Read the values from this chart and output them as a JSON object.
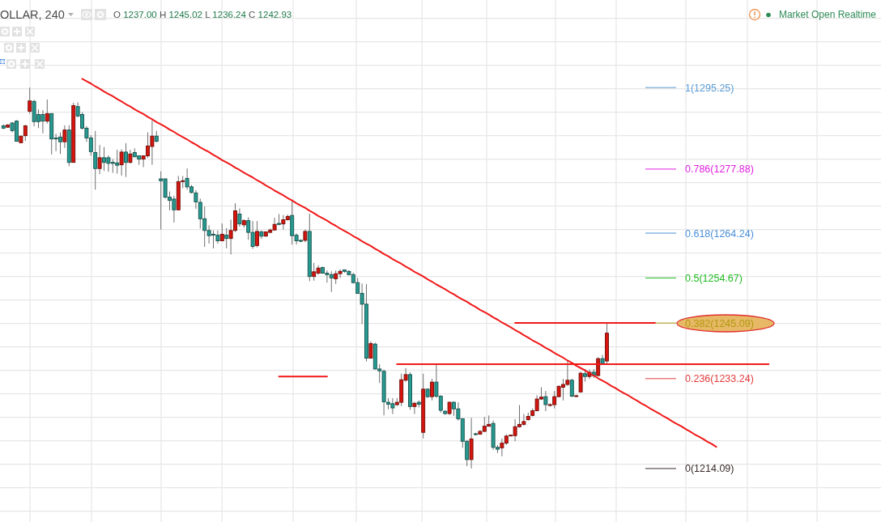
{
  "chart_data": {
    "type": "candlestick",
    "title": "OLLAR, 240",
    "subtitle": "O 1237.00 H 1245.02 L 1236.24 C 1242.93",
    "annotations": [
      "Market Open Realtime"
    ],
    "categories": [
      null,
      null,
      null,
      null,
      null,
      null,
      null,
      null,
      null,
      null,
      null,
      null,
      null,
      null,
      null,
      null,
      null,
      null,
      null,
      null,
      null,
      null,
      null,
      null,
      null,
      null,
      null,
      null,
      null,
      null,
      null,
      null,
      null,
      null,
      null,
      null,
      null,
      null,
      null,
      null,
      null,
      null,
      null,
      null,
      null,
      null,
      null,
      null,
      null,
      null,
      null,
      null,
      null,
      null,
      null,
      null,
      null,
      null,
      null,
      null,
      null,
      null,
      null,
      null,
      null,
      null,
      null,
      null,
      null,
      null,
      null,
      null,
      null,
      null,
      null,
      null,
      null,
      null,
      null,
      null,
      null,
      null,
      null,
      null,
      null,
      null,
      null,
      null,
      null,
      null,
      null,
      null,
      null,
      null,
      null,
      null,
      null,
      null,
      null,
      null,
      null,
      null,
      null,
      null,
      null,
      null,
      null,
      null,
      null,
      null,
      null,
      null,
      null,
      null,
      null,
      null,
      null,
      null,
      null,
      null,
      null,
      null,
      null,
      null,
      null,
      null,
      null,
      null,
      null,
      null,
      null,
      null,
      null,
      null,
      null,
      null,
      null,
      null,
      null,
      null,
      null,
      null,
      null,
      null,
      null,
      null,
      null,
      null,
      null,
      null,
      null,
      null,
      null,
      null,
      null,
      null,
      null,
      null,
      null,
      null,
      null,
      null,
      null,
      null,
      null,
      null,
      null,
      null,
      null,
      null,
      null,
      null,
      null,
      null,
      null,
      null,
      null,
      null,
      null,
      null,
      null,
      null,
      null,
      null,
      null,
      null,
      null,
      null,
      null,
      null,
      null,
      null,
      null,
      null,
      null,
      null,
      null,
      null,
      null,
      null,
      null
    ],
    "ohlc": [
      [
        1287.1,
        1287.4,
        1286.4,
        1286.6
      ],
      [
        1286.8,
        1287.4,
        1286.7,
        1287.3
      ],
      [
        1287.7,
        1287.9,
        1285.7,
        1286.1
      ],
      [
        1288.1,
        1288.3,
        1283.7,
        1283.8
      ],
      [
        1283.5,
        1285.0,
        1283.4,
        1284.9
      ],
      [
        1285.0,
        1287.3,
        1283.9,
        1287.1
      ],
      [
        1290.2,
        1295.25,
        1289.7,
        1292.4
      ],
      [
        1292.3,
        1292.6,
        1287.0,
        1288.0
      ],
      [
        1289.5,
        1290.6,
        1286.6,
        1288.0
      ],
      [
        1289.5,
        1290.4,
        1285.5,
        1288.1
      ],
      [
        1288.1,
        1292.7,
        1287.6,
        1289.7
      ],
      [
        1289.7,
        1289.7,
        1281.0,
        1284.3
      ],
      [
        1284.5,
        1285.4,
        1281.7,
        1284.3
      ],
      [
        1284.7,
        1285.7,
        1281.1,
        1283.7
      ],
      [
        1283.7,
        1287.2,
        1282.4,
        1286.2
      ],
      [
        1286.2,
        1287.2,
        1278.5,
        1279.3
      ],
      [
        1279.3,
        1292.0,
        1279.3,
        1291.4
      ],
      [
        1291.2,
        1292.1,
        1288.9,
        1289.2
      ],
      [
        1289.5,
        1290.0,
        1286.3,
        1286.6
      ],
      [
        1286.6,
        1287.0,
        1283.7,
        1284.5
      ],
      [
        1284.5,
        1285.1,
        1280.7,
        1281.6
      ],
      [
        1281.4,
        1286.0,
        1273.5,
        1278.0
      ],
      [
        1278.0,
        1283.0,
        1276.8,
        1280.3
      ],
      [
        1280.3,
        1282.6,
        1277.5,
        1279.3
      ],
      [
        1280.3,
        1280.8,
        1277.3,
        1279.1
      ],
      [
        1279.3,
        1280.0,
        1277.1,
        1279.1
      ],
      [
        1279.2,
        1282.0,
        1276.9,
        1278.7
      ],
      [
        1278.8,
        1282.1,
        1276.5,
        1281.5
      ],
      [
        1281.5,
        1283.4,
        1276.2,
        1279.3
      ],
      [
        1279.3,
        1282.0,
        1279.1,
        1281.1
      ],
      [
        1281.4,
        1282.3,
        1280.4,
        1280.5
      ],
      [
        1280.7,
        1280.8,
        1278.8,
        1280.0
      ],
      [
        1280.0,
        1280.8,
        1278.3,
        1280.7
      ],
      [
        1280.7,
        1285.7,
        1280.3,
        1282.8
      ],
      [
        1282.7,
        1288.2,
        1278.8,
        1284.9
      ],
      [
        1284.9,
        1286.0,
        1283.6,
        1283.8
      ],
      [
        1275.8,
        1277.4,
        1265.0,
        1275.4
      ],
      [
        1275.8,
        1275.8,
        1271.6,
        1271.9
      ],
      [
        1271.9,
        1273.1,
        1269.1,
        1271.2
      ],
      [
        1271.5,
        1272.2,
        1266.5,
        1269.2
      ],
      [
        1269.2,
        1276.4,
        1269.1,
        1275.2
      ],
      [
        1275.3,
        1276.4,
        1273.8,
        1275.4
      ],
      [
        1275.9,
        1278.0,
        1273.5,
        1274.1
      ],
      [
        1274.1,
        1274.5,
        1272.7,
        1272.9
      ],
      [
        1272.8,
        1273.4,
        1269.4,
        1270.9
      ],
      [
        1270.8,
        1271.6,
        1265.2,
        1267.3
      ],
      [
        1267.3,
        1269.9,
        1261.3,
        1264.8
      ],
      [
        1264.8,
        1265.9,
        1262.0,
        1263.7
      ],
      [
        1264.0,
        1264.8,
        1261.0,
        1263.8
      ],
      [
        1263.8,
        1264.8,
        1262.0,
        1262.6
      ],
      [
        1262.6,
        1266.3,
        1262.5,
        1264.0
      ],
      [
        1263.8,
        1265.3,
        1261.0,
        1263.1
      ],
      [
        1263.1,
        1267.1,
        1259.7,
        1264.8
      ],
      [
        1264.8,
        1270.6,
        1264.5,
        1269.0
      ],
      [
        1268.3,
        1269.5,
        1265.6,
        1266.2
      ],
      [
        1266.0,
        1267.2,
        1265.4,
        1266.9
      ],
      [
        1266.9,
        1267.6,
        1262.8,
        1264.4
      ],
      [
        1264.4,
        1266.8,
        1260.9,
        1261.4
      ],
      [
        1261.6,
        1266.8,
        1261.2,
        1264.6
      ],
      [
        1264.5,
        1264.8,
        1263.0,
        1263.6
      ],
      [
        1263.6,
        1264.6,
        1263.5,
        1264.5
      ],
      [
        1264.4,
        1265.2,
        1264.2,
        1264.9
      ],
      [
        1264.9,
        1267.5,
        1264.8,
        1266.1
      ],
      [
        1266.3,
        1268.3,
        1265.9,
        1266.1
      ],
      [
        1266.2,
        1268.1,
        1265.0,
        1267.1
      ],
      [
        1267.1,
        1268.2,
        1266.9,
        1267.8
      ],
      [
        1268.0,
        1271.1,
        1261.8,
        1263.7
      ],
      [
        1263.8,
        1264.2,
        1261.8,
        1262.6
      ],
      [
        1262.7,
        1262.9,
        1262.3,
        1262.5
      ],
      [
        1262.7,
        1265.0,
        1262.3,
        1264.6
      ],
      [
        1264.6,
        1268.4,
        1254.0,
        1255.0
      ],
      [
        1255.0,
        1257.9,
        1254.1,
        1256.0
      ],
      [
        1255.7,
        1257.4,
        1255.4,
        1256.8
      ],
      [
        1256.9,
        1257.1,
        1255.6,
        1255.7
      ],
      [
        1255.7,
        1256.3,
        1253.7,
        1255.4
      ],
      [
        1255.4,
        1256.1,
        1251.7,
        1254.7
      ],
      [
        1254.5,
        1256.3,
        1253.4,
        1255.6
      ],
      [
        1255.6,
        1256.5,
        1254.7,
        1256.1
      ],
      [
        1256.4,
        1256.5,
        1255.8,
        1256.1
      ],
      [
        1256.1,
        1256.3,
        1255.2,
        1255.4
      ],
      [
        1255.4,
        1255.8,
        1253.5,
        1253.7
      ],
      [
        1253.7,
        1254.7,
        1251.3,
        1251.4
      ],
      [
        1251.4,
        1253.5,
        1244.9,
        1249.1
      ],
      [
        1249.1,
        1253.4,
        1236.9,
        1237.6
      ],
      [
        1237.6,
        1241.2,
        1237.5,
        1240.7
      ],
      [
        1240.6,
        1240.9,
        1235.2,
        1235.3
      ],
      [
        1235.3,
        1236.3,
        1232.3,
        1234.9
      ],
      [
        1234.8,
        1235.2,
        1225.4,
        1228.3
      ],
      [
        1228.2,
        1229.1,
        1226.7,
        1227.8
      ],
      [
        1227.9,
        1229.1,
        1225.7,
        1227.0
      ],
      [
        1227.7,
        1229.1,
        1227.4,
        1228.2
      ],
      [
        1228.2,
        1234.3,
        1227.4,
        1233.0
      ],
      [
        1232.9,
        1235.5,
        1232.6,
        1234.1
      ],
      [
        1234.1,
        1234.6,
        1226.6,
        1227.3
      ],
      [
        1227.3,
        1228.3,
        1225.7,
        1228.0
      ],
      [
        1228.2,
        1228.6,
        1227.1,
        1227.8
      ],
      [
        1221.8,
        1234.3,
        1220.5,
        1231.0
      ],
      [
        1231.0,
        1231.2,
        1229.1,
        1229.4
      ],
      [
        1229.4,
        1233.2,
        1228.6,
        1232.5
      ],
      [
        1232.5,
        1236.3,
        1229.1,
        1229.5
      ],
      [
        1229.5,
        1229.7,
        1226.0,
        1226.5
      ],
      [
        1226.3,
        1226.5,
        1225.5,
        1225.8
      ],
      [
        1225.8,
        1228.4,
        1225.5,
        1228.2
      ],
      [
        1228.2,
        1228.4,
        1225.3,
        1226.8
      ],
      [
        1226.8,
        1228.2,
        1224.3,
        1224.7
      ],
      [
        1224.7,
        1224.8,
        1218.5,
        1219.9
      ],
      [
        1219.9,
        1220.2,
        1214.6,
        1216.0
      ],
      [
        1216.0,
        1224.9,
        1214.09,
        1220.4
      ],
      [
        1221.5,
        1221.7,
        1221.1,
        1221.4
      ],
      [
        1221.4,
        1222.3,
        1221.3,
        1222.0
      ],
      [
        1222.0,
        1225.1,
        1221.9,
        1223.1
      ],
      [
        1223.1,
        1225.4,
        1223.0,
        1223.5
      ],
      [
        1223.7,
        1224.3,
        1218.1,
        1218.6
      ],
      [
        1218.6,
        1219.1,
        1217.4,
        1218.2
      ],
      [
        1218.5,
        1220.5,
        1216.7,
        1219.5
      ],
      [
        1219.5,
        1221.4,
        1219.1,
        1221.0
      ],
      [
        1221.1,
        1221.3,
        1221.0,
        1221.2
      ],
      [
        1221.1,
        1224.6,
        1219.9,
        1223.0
      ],
      [
        1223.0,
        1227.6,
        1222.8,
        1223.5
      ],
      [
        1223.5,
        1225.7,
        1223.2,
        1224.1
      ],
      [
        1224.5,
        1226.0,
        1224.3,
        1225.2
      ],
      [
        1225.4,
        1226.9,
        1225.2,
        1226.4
      ],
      [
        1226.4,
        1229.7,
        1226.3,
        1228.9
      ],
      [
        1228.9,
        1231.4,
        1228.7,
        1229.3
      ],
      [
        1229.4,
        1230.6,
        1226.3,
        1227.7
      ],
      [
        1227.6,
        1228.0,
        1227.3,
        1227.7
      ],
      [
        1227.7,
        1230.6,
        1226.9,
        1229.4
      ],
      [
        1229.4,
        1231.8,
        1229.3,
        1231.6
      ],
      [
        1231.4,
        1233.2,
        1228.6,
        1232.0
      ],
      [
        1232.0,
        1237.2,
        1231.7,
        1232.9
      ],
      [
        1232.9,
        1233.2,
        1229.3,
        1229.5
      ],
      [
        1229.5,
        1229.8,
        1229.3,
        1229.6
      ],
      [
        1230.4,
        1234.7,
        1230.3,
        1234.4
      ],
      [
        1234.3,
        1235.3,
        1232.6,
        1233.7
      ],
      [
        1233.7,
        1235.2,
        1233.2,
        1234.6
      ],
      [
        1234.6,
        1235.3,
        1233.4,
        1233.9
      ],
      [
        1233.9,
        1237.8,
        1233.7,
        1237.5
      ],
      [
        1237.5,
        1238.3,
        1236.3,
        1236.4
      ],
      [
        1237.0,
        1245.02,
        1236.24,
        1242.93
      ],
      null,
      null,
      null,
      null,
      null,
      null,
      null,
      null,
      null,
      null,
      null,
      null,
      null,
      null,
      null,
      null,
      null,
      null,
      null,
      null,
      null,
      null,
      null,
      null,
      null,
      null,
      null,
      null,
      null,
      null,
      null,
      null,
      null,
      null,
      null,
      null,
      null,
      null,
      null,
      null,
      null,
      null,
      null,
      null,
      null,
      null,
      null,
      null,
      null,
      null,
      null,
      null,
      null,
      null,
      null,
      null,
      null,
      null,
      null,
      null,
      null,
      null
    ],
    "colors": [
      "#279a91",
      "#d5150e",
      "#279a91",
      "#279a91",
      "#d5150e",
      "#d5150e",
      "#d5150e",
      "#279a91",
      "#279a91",
      "#279a91",
      "#d5150e",
      "#279a91",
      "#279a91",
      "#279a91",
      "#d5150e",
      "#279a91",
      "#d5150e",
      "#279a91",
      "#279a91",
      "#279a91",
      "#279a91",
      "#279a91",
      "#d5150e",
      "#279a91",
      "#279a91",
      "#279a91",
      "#279a91",
      "#d5150e",
      "#279a91",
      "#d5150e",
      "#279a91",
      "#279a91",
      "#d5150e",
      "#d5150e",
      "#d5150e",
      "#279a91",
      "#279a91",
      "#279a91",
      "#279a91",
      "#279a91",
      "#d5150e",
      "#d5150e",
      "#279a91",
      "#279a91",
      "#279a91",
      "#279a91",
      "#279a91",
      "#279a91",
      "#279a91",
      "#279a91",
      "#d5150e",
      "#279a91",
      "#d5150e",
      "#d5150e",
      "#279a91",
      "#d5150e",
      "#279a91",
      "#279a91",
      "#d5150e",
      "#279a91",
      "#d5150e",
      "#d5150e",
      "#d5150e",
      "#279a91",
      "#d5150e",
      "#d5150e",
      "#279a91",
      "#279a91",
      "#279a91",
      "#d5150e",
      "#279a91",
      "#d5150e",
      "#d5150e",
      "#279a91",
      "#279a91",
      "#279a91",
      "#d5150e",
      "#d5150e",
      "#279a91",
      "#279a91",
      "#279a91",
      "#279a91",
      "#279a91",
      "#279a91",
      "#d5150e",
      "#279a91",
      "#279a91",
      "#279a91",
      "#279a91",
      "#279a91",
      "#d5150e",
      "#d5150e",
      "#d5150e",
      "#279a91",
      "#d5150e",
      "#279a91",
      "#d5150e",
      "#279a91",
      "#d5150e",
      "#279a91",
      "#279a91",
      "#279a91",
      "#d5150e",
      "#279a91",
      "#279a91",
      "#279a91",
      "#279a91",
      "#d5150e",
      "#279a91",
      "#d5150e",
      "#d5150e",
      "#d5150e",
      "#279a91",
      "#279a91",
      "#d5150e",
      "#d5150e",
      "#d5150e",
      "#d5150e",
      "#d5150e",
      "#d5150e",
      "#d5150e",
      "#d5150e",
      "#d5150e",
      "#d5150e",
      "#279a91",
      "#d5150e",
      "#d5150e",
      "#d5150e",
      "#d5150e",
      "#d5150e",
      "#279a91",
      "#d5150e",
      "#d5150e",
      "#279a91",
      "#d5150e",
      "#279a91",
      "#d5150e",
      "#279a91",
      "#d5150e",
      null,
      null,
      null,
      null,
      null,
      null,
      null,
      null,
      null,
      null,
      null,
      null,
      null,
      null,
      null,
      null,
      null,
      null,
      null,
      null,
      null,
      null,
      null,
      null,
      null,
      null,
      null,
      null,
      null,
      null,
      null,
      null,
      null,
      null,
      null,
      null,
      null,
      null,
      null,
      null,
      null,
      null,
      null,
      null,
      null,
      null,
      null,
      null,
      null,
      null,
      null,
      null,
      null,
      null,
      null,
      null,
      null,
      null,
      null,
      null,
      null,
      null
    ],
    "series": [
      {
        "type": "line",
        "color": "#f01818",
        "values": [
          null,
          null,
          null,
          null,
          null,
          null,
          null,
          null,
          null,
          null,
          null,
          null,
          null,
          null,
          null,
          null,
          null,
          null,
          1297.1,
          1296.6,
          1296.1,
          1295.5,
          1295.0,
          1294.4,
          1293.9,
          1293.4,
          1292.8,
          1292.3,
          1291.7,
          1291.2,
          1290.6,
          1290.1,
          1289.6,
          1289.0,
          1288.5,
          1287.9,
          1287.4,
          1286.9,
          1286.3,
          1285.8,
          1285.2,
          1284.7,
          1284.2,
          1283.6,
          1283.1,
          1282.5,
          1282.0,
          1281.5,
          1280.9,
          1280.4,
          1279.8,
          1279.3,
          1278.8,
          1278.2,
          1277.7,
          1277.1,
          1276.6,
          1276.1,
          1275.5,
          1275.0,
          1274.4,
          1273.9,
          1273.3,
          1272.8,
          1272.3,
          1271.7,
          1271.2,
          1270.6,
          1270.1,
          1269.6,
          1269.0,
          1268.5,
          1267.9,
          1267.4,
          1266.9,
          1266.3,
          1265.8,
          1265.2,
          1264.7,
          1264.2,
          1263.6,
          1263.1,
          1262.5,
          1262.0,
          1261.5,
          1260.9,
          1260.4,
          1259.8,
          1259.3,
          1258.7,
          1258.2,
          1257.7,
          1257.1,
          1256.6,
          1256.0,
          1255.5,
          1255.0,
          1254.4,
          1253.9,
          1253.3,
          1252.8,
          1252.3,
          1251.7,
          1251.2,
          1250.6,
          1250.1,
          1249.6,
          1249.0,
          1248.5,
          1247.9,
          1247.4,
          1246.9,
          1246.3,
          1245.8,
          1245.2,
          1244.7,
          1244.2,
          1243.6,
          1243.1,
          1242.5,
          1242.0,
          1241.4,
          1240.9,
          1240.4,
          1239.8,
          1239.3,
          1238.7,
          1238.2,
          1237.7,
          1237.1,
          1236.6,
          1236.0,
          1235.5,
          1235.0,
          1234.4,
          1233.9,
          1233.3,
          1232.8,
          1232.3,
          1231.7,
          1231.2,
          1230.6,
          1230.1,
          1229.6,
          1229.0,
          1228.5,
          1227.9,
          1227.4,
          1226.8,
          1226.3,
          1225.8,
          1225.2,
          1224.7,
          1224.1,
          1223.6,
          1223.1,
          1222.5,
          1222.0,
          1221.4,
          1220.9,
          1220.4,
          1219.8,
          1219.3,
          1218.7,
          null,
          null,
          null,
          null,
          null,
          null,
          null,
          null,
          null,
          null,
          null,
          null,
          null,
          null,
          null,
          null,
          null,
          null,
          null,
          null,
          null,
          null,
          null,
          null,
          null,
          null,
          null,
          null,
          null,
          null,
          null,
          null,
          null,
          null,
          null,
          null,
          null
        ]
      },
      {
        "type": "line",
        "color": "#f01818",
        "values": [
          null,
          null,
          null,
          null,
          null,
          null,
          null,
          null,
          null,
          null,
          null,
          null,
          null,
          null,
          null,
          null,
          null,
          null,
          null,
          null,
          null,
          null,
          null,
          null,
          null,
          null,
          null,
          null,
          null,
          null,
          null,
          null,
          null,
          null,
          null,
          null,
          null,
          null,
          null,
          null,
          null,
          null,
          null,
          null,
          null,
          null,
          null,
          null,
          null,
          null,
          null,
          null,
          null,
          null,
          null,
          null,
          null,
          null,
          null,
          null,
          null,
          null,
          null,
          null,
          null,
          null,
          null,
          null,
          null,
          null,
          null,
          null,
          null,
          null,
          null,
          null,
          null,
          null,
          null,
          null,
          null,
          null,
          null,
          null,
          null,
          null,
          null,
          null,
          null,
          null,
          null,
          null,
          null,
          null,
          null,
          null,
          null,
          null,
          null,
          null,
          null,
          null,
          null,
          null,
          null,
          null,
          null,
          null,
          null,
          null,
          null,
          null,
          null,
          null,
          null,
          null,
          null,
          1245.1,
          1245.1,
          1245.1,
          1245.1,
          1245.1,
          1245.1,
          1245.1,
          1245.1,
          1245.1,
          1245.1,
          1245.1,
          1245.1,
          1245.1,
          1245.1,
          1245.1,
          1245.1,
          1245.1,
          1245.1,
          1245.1,
          1245.1,
          1245.1,
          1245.1,
          1245.1,
          1245.1,
          1245.1,
          1245.1,
          1245.1,
          1245.1,
          1245.1,
          1245.1,
          1245.1,
          1245.1,
          1245.1,
          null,
          null,
          null,
          null,
          null,
          null,
          null,
          null,
          null,
          null,
          null,
          null,
          null,
          null,
          null,
          null,
          null,
          null,
          null,
          null,
          null,
          null,
          null,
          null,
          null,
          null,
          null,
          null,
          null,
          null,
          null,
          null,
          null,
          null,
          null,
          null,
          null,
          null,
          null,
          null,
          null,
          null,
          null,
          null,
          null,
          null,
          null,
          null,
          null,
          null,
          null
        ]
      },
      {
        "type": "line",
        "color": "#f01818",
        "values": [
          null,
          null,
          null,
          null,
          null,
          null,
          null,
          null,
          null,
          null,
          null,
          null,
          null,
          null,
          null,
          null,
          null,
          null,
          null,
          null,
          null,
          null,
          null,
          null,
          null,
          null,
          null,
          null,
          null,
          null,
          null,
          null,
          null,
          null,
          null,
          null,
          null,
          null,
          null,
          null,
          null,
          null,
          null,
          null,
          null,
          null,
          null,
          null,
          null,
          null,
          null,
          null,
          null,
          null,
          null,
          null,
          null,
          null,
          null,
          null,
          null,
          null,
          null,
          null,
          null,
          null,
          null,
          null,
          null,
          null,
          null,
          null,
          null,
          null,
          null,
          null,
          null,
          null,
          null,
          null,
          null,
          null,
          null,
          null,
          null,
          null,
          null,
          null,
          null,
          null,
          1236.3,
          1236.3,
          1236.3,
          1236.3,
          1236.3,
          1236.3,
          1236.3,
          1236.3,
          1236.3,
          1236.3,
          1236.3,
          1236.3,
          1236.3,
          1236.3,
          1236.3,
          1236.3,
          1236.3,
          1236.3,
          1236.3,
          1236.3,
          1236.3,
          1236.3,
          1236.3,
          1236.3,
          1236.3,
          1236.3,
          1236.3,
          1236.3,
          1236.3,
          1236.3,
          1236.3,
          1236.3,
          1236.3,
          1236.3,
          1236.3,
          1236.3,
          1236.3,
          1236.3,
          1236.3,
          1236.3,
          1236.3,
          1236.3,
          1236.3,
          1236.3,
          1236.3,
          1236.3,
          1236.3,
          1236.3,
          1236.3,
          1236.3,
          1236.3,
          1236.3,
          1236.3,
          1236.3,
          1236.3,
          1236.3,
          1236.3,
          1236.3,
          1236.3,
          1236.3,
          1236.3,
          1236.3,
          1236.3,
          1236.3,
          1236.3,
          1236.3,
          1236.3,
          1236.3,
          1236.3,
          1236.3,
          1236.3,
          1236.3,
          1236.3,
          1236.3,
          1236.3,
          1236.3,
          1236.3,
          1236.3,
          1236.3,
          1236.3,
          1236.3,
          1236.3,
          1236.3,
          1236.3,
          1236.3,
          1236.3,
          null,
          null,
          null,
          null,
          null,
          null,
          null,
          null,
          null,
          null,
          null,
          null,
          null,
          null,
          null,
          null,
          null,
          null,
          null,
          null,
          null,
          null,
          null,
          null,
          null
        ]
      },
      {
        "type": "line",
        "color": "#f01818",
        "values": [
          null,
          null,
          null,
          null,
          null,
          null,
          null,
          null,
          null,
          null,
          null,
          null,
          null,
          null,
          null,
          null,
          null,
          null,
          null,
          null,
          null,
          null,
          null,
          null,
          null,
          null,
          null,
          null,
          null,
          null,
          null,
          null,
          null,
          null,
          null,
          null,
          null,
          null,
          null,
          null,
          null,
          null,
          null,
          null,
          null,
          null,
          null,
          null,
          null,
          null,
          null,
          null,
          null,
          null,
          null,
          null,
          null,
          null,
          null,
          null,
          null,
          null,
          null,
          1233.7,
          1233.7,
          1233.7,
          1233.7,
          1233.7,
          1233.7,
          1233.7,
          1233.7,
          1233.7,
          1233.7,
          1233.7,
          1233.7,
          null,
          null,
          null,
          null,
          null,
          null,
          null,
          null,
          null,
          null,
          null,
          null,
          null,
          null,
          null,
          null,
          null,
          null,
          null,
          null,
          null,
          null,
          null,
          null,
          null,
          null,
          null,
          null,
          null,
          null,
          null,
          null,
          null,
          null,
          null,
          null,
          null,
          null,
          null,
          null,
          null,
          null,
          null,
          null,
          null,
          null,
          null,
          null,
          null,
          null,
          null,
          null,
          null,
          null,
          null,
          null,
          null,
          null,
          null,
          null,
          null,
          null,
          null,
          null,
          null,
          null,
          null,
          null,
          null,
          null,
          null,
          null,
          null,
          null,
          null,
          null,
          null,
          null,
          null,
          null,
          null,
          null,
          null,
          null,
          null,
          null,
          null,
          null,
          null,
          null,
          null,
          null,
          null,
          null,
          null,
          null,
          null,
          null,
          null,
          null,
          null,
          null,
          null,
          null,
          null,
          null,
          null,
          null,
          null,
          null,
          null,
          null,
          null,
          null,
          null,
          null,
          null,
          null,
          null,
          null,
          null,
          null,
          null,
          null,
          null,
          null
        ]
      }
    ],
    "ref_lines": [
      {
        "axis": "y",
        "value": 1295.25,
        "label": "1(1295.25)",
        "color": "#5b9bd5"
      },
      {
        "axis": "y",
        "value": 1277.88,
        "label": "0.786(1277.88)",
        "color": "#e020e0"
      },
      {
        "axis": "y",
        "value": 1264.24,
        "label": "0.618(1264.24)",
        "color": "#4a90d9"
      },
      {
        "axis": "y",
        "value": 1254.67,
        "label": "0.5(1254.67)",
        "color": "#22bb22"
      },
      {
        "axis": "y",
        "value": 1245.09,
        "label": "0.382(1245.09)",
        "color": "#b09a10"
      },
      {
        "axis": "y",
        "value": 1233.24,
        "label": "0.236(1233.24)",
        "color": "#e23b3b"
      },
      {
        "axis": "y",
        "value": 1214.09,
        "label": "0(1214.09)",
        "color": "#3a2a2a"
      }
    ],
    "ylim": [
      1202.7,
      1313.9
    ],
    "yticks": [
      {
        "value": 1205,
        "label": null
      },
      {
        "value": 1210,
        "label": null
      },
      {
        "value": 1215,
        "label": null
      },
      {
        "value": 1220,
        "label": null
      },
      {
        "value": 1225,
        "label": null
      },
      {
        "value": 1230,
        "label": null
      },
      {
        "value": 1235,
        "label": null
      },
      {
        "value": 1240,
        "label": null
      },
      {
        "value": 1245,
        "label": null
      },
      {
        "value": 1250,
        "label": null
      },
      {
        "value": 1255,
        "label": null
      },
      {
        "value": 1260,
        "label": null
      },
      {
        "value": 1265,
        "label": null
      },
      {
        "value": 1270,
        "label": null
      },
      {
        "value": 1275,
        "label": null
      },
      {
        "value": 1280,
        "label": null
      },
      {
        "value": 1285,
        "label": null
      },
      {
        "value": 1290,
        "label": null
      },
      {
        "value": 1295,
        "label": null
      },
      {
        "value": 1300,
        "label": null
      },
      {
        "value": 1305,
        "label": null
      },
      {
        "value": 1310,
        "label": null
      }
    ],
    "tick_labels": false,
    "grid": true
  }
}
